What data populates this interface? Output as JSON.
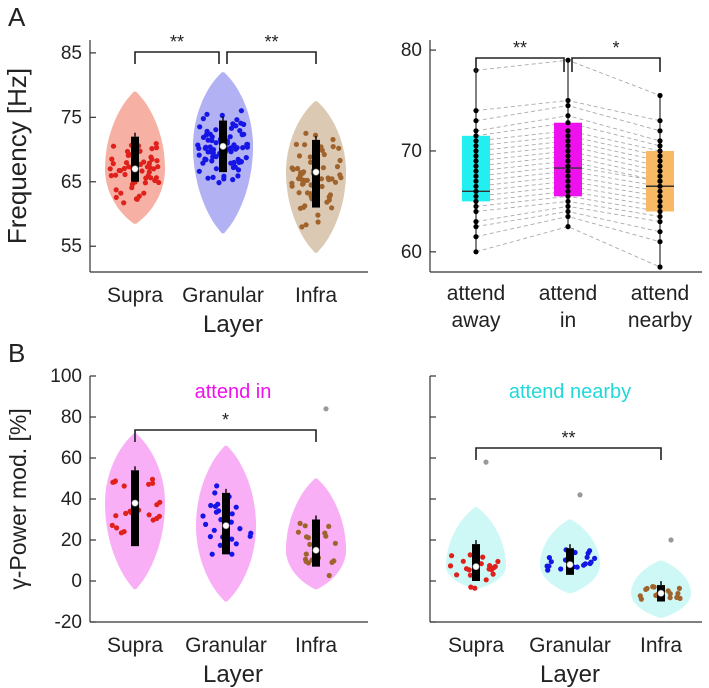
{
  "panel_labels": {
    "a": "A",
    "b": "B"
  },
  "chart_data": [
    {
      "id": "A-left",
      "type": "violin",
      "xlabel": "Layer",
      "ylabel": "Frequency [Hz]",
      "ylim": [
        51,
        87
      ],
      "yticks": [
        55,
        65,
        75,
        85
      ],
      "ytick_labels": [
        "55",
        "65",
        "75",
        "85"
      ],
      "categories": [
        "Supra",
        "Granular",
        "Infra"
      ],
      "colors": {
        "Supra": "#e0201b",
        "Granular": "#1515e6",
        "Infra": "#a0632c"
      },
      "fills": {
        "Supra": "#f5a89a",
        "Granular": "#a9a9f2",
        "Infra": "#d8c3ab"
      },
      "series": [
        {
          "name": "Supra",
          "median": 67,
          "q1": 65,
          "q3": 72,
          "min": 58.5,
          "max": 79,
          "n": 55
        },
        {
          "name": "Granular",
          "median": 70.5,
          "q1": 66.5,
          "q3": 74.5,
          "min": 57,
          "max": 82,
          "n": 80
        },
        {
          "name": "Infra",
          "median": 66.5,
          "q1": 61,
          "q3": 71.5,
          "min": 54,
          "max": 77.5,
          "n": 70
        }
      ],
      "significance": [
        {
          "from": "Supra",
          "to": "Granular",
          "label": "**"
        },
        {
          "from": "Granular",
          "to": "Infra",
          "label": "**"
        }
      ]
    },
    {
      "id": "A-right",
      "type": "box_paired",
      "xlabel": "",
      "ylabel": "",
      "ylim": [
        58,
        81
      ],
      "yticks": [
        60,
        70,
        80
      ],
      "ytick_labels": [
        "60",
        "70",
        "80"
      ],
      "categories": [
        {
          "line1": "attend",
          "line2": "away"
        },
        {
          "line1": "attend",
          "line2": "in"
        },
        {
          "line1": "attend",
          "line2": "nearby"
        }
      ],
      "box_colors": [
        "#22f0f0",
        "#ee11ee",
        "#f7b964"
      ],
      "series": [
        {
          "name": "attend away",
          "median": 66,
          "q1": 65,
          "q3": 71.5,
          "min": 60,
          "max": 78
        },
        {
          "name": "attend in",
          "median": 68.3,
          "q1": 65.5,
          "q3": 72.8,
          "min": 62.5,
          "max": 79
        },
        {
          "name": "attend nearby",
          "median": 66.5,
          "q1": 64,
          "q3": 70,
          "min": 58.5,
          "max": 75.5
        }
      ],
      "paired_points": [
        [
          60.0,
          62.5,
          58.5
        ],
        [
          61.5,
          63.5,
          61.0
        ],
        [
          62.5,
          64.0,
          62.0
        ],
        [
          63.0,
          64.5,
          63.0
        ],
        [
          64.0,
          65.0,
          63.5
        ],
        [
          64.5,
          65.5,
          64.0
        ],
        [
          65.0,
          66.0,
          64.5
        ],
        [
          65.5,
          66.5,
          65.0
        ],
        [
          66.0,
          67.0,
          65.5
        ],
        [
          66.5,
          67.5,
          66.0
        ],
        [
          67.0,
          68.0,
          66.5
        ],
        [
          67.5,
          68.5,
          67.0
        ],
        [
          68.0,
          69.0,
          67.0
        ],
        [
          68.5,
          69.5,
          67.5
        ],
        [
          69.0,
          70.0,
          68.0
        ],
        [
          69.5,
          70.5,
          68.5
        ],
        [
          70.0,
          71.0,
          69.0
        ],
        [
          70.5,
          71.5,
          69.5
        ],
        [
          71.0,
          72.0,
          70.0
        ],
        [
          71.5,
          72.8,
          70.5
        ],
        [
          72.0,
          73.5,
          71.0
        ],
        [
          73.0,
          74.5,
          72.0
        ],
        [
          74.0,
          75.0,
          73.0
        ],
        [
          78.0,
          79.0,
          75.5
        ]
      ],
      "significance": [
        {
          "from": 0,
          "to": 1,
          "label": "**"
        },
        {
          "from": 1,
          "to": 2,
          "label": "*"
        }
      ]
    },
    {
      "id": "B-left",
      "type": "violin",
      "title": "attend in",
      "title_color": "#ee11ee",
      "xlabel": "Layer",
      "ylabel": "γ-Power mod. [%]",
      "ylim": [
        -20,
        100
      ],
      "yticks": [
        -20,
        0,
        20,
        40,
        60,
        80,
        100
      ],
      "ytick_labels": [
        "-20",
        "0",
        "20",
        "40",
        "60",
        "80",
        "100"
      ],
      "categories": [
        "Supra",
        "Granular",
        "Infra"
      ],
      "violin_fill": "#f7a6f5",
      "colors": {
        "Supra": "#e0201b",
        "Granular": "#1515e6",
        "Infra": "#a0632c"
      },
      "series": [
        {
          "name": "Supra",
          "median": 38,
          "q1": 17,
          "q3": 54,
          "min": -4,
          "max": 72,
          "n": 24
        },
        {
          "name": "Granular",
          "median": 27,
          "q1": 13,
          "q3": 43,
          "min": -10,
          "max": 66,
          "n": 26
        },
        {
          "name": "Infra",
          "median": 15,
          "q1": 7,
          "q3": 30,
          "min": -4,
          "max": 50,
          "n": 20,
          "outlier": 84
        }
      ],
      "significance": [
        {
          "from": "Supra",
          "to": "Infra",
          "label": "*"
        }
      ]
    },
    {
      "id": "B-right",
      "type": "violin",
      "title": "attend nearby",
      "title_color": "#22d8d8",
      "xlabel": "Layer",
      "ylabel": "",
      "ylim": [
        -20,
        100
      ],
      "yticks": [
        -20,
        0,
        20,
        40,
        60,
        80,
        100
      ],
      "ytick_labels": [
        "",
        "",
        "",
        "",
        "",
        "",
        ""
      ],
      "categories": [
        "Supra",
        "Granular",
        "Infra"
      ],
      "violin_fill": "#c9f7f5",
      "colors": {
        "Supra": "#e0201b",
        "Granular": "#1515e6",
        "Infra": "#a0632c"
      },
      "series": [
        {
          "name": "Supra",
          "median": 7,
          "q1": 0,
          "q3": 18,
          "min": -4,
          "max": 36,
          "n": 22,
          "outlier": 58
        },
        {
          "name": "Granular",
          "median": 8,
          "q1": 3,
          "q3": 16,
          "min": -6,
          "max": 30,
          "n": 20,
          "outlier": 42
        },
        {
          "name": "Infra",
          "median": -6,
          "q1": -10,
          "q3": -2,
          "min": -18,
          "max": 10,
          "n": 18,
          "outlier": 20
        }
      ],
      "significance": [
        {
          "from": "Supra",
          "to": "Infra",
          "label": "**"
        }
      ]
    }
  ]
}
